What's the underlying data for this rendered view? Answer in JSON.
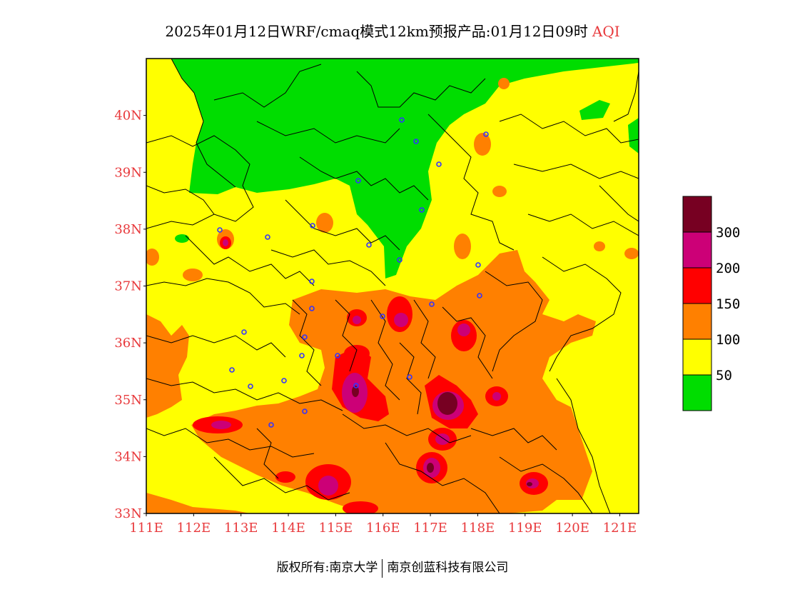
{
  "title": {
    "main": "2025年01月12日WRF/cmaq模式12km预报产品:01月12日09时",
    "product": "AQI"
  },
  "map": {
    "lat_labels": [
      "40N",
      "39N",
      "38N",
      "37N",
      "36N",
      "35N",
      "34N",
      "33N"
    ],
    "lon_labels": [
      "111E",
      "112E",
      "113E",
      "114E",
      "115E",
      "116E",
      "117E",
      "118E",
      "119E",
      "120E",
      "121E"
    ],
    "lat_range": [
      33,
      41
    ],
    "lon_range": [
      111,
      121.4
    ],
    "colors": {
      "good": "#00dd00",
      "moderate": "#ffff00",
      "sensitive": "#ff8000",
      "unhealthy": "#ff0000",
      "very_unhealthy": "#cc0077",
      "hazardous": "#770022",
      "station": "#3333ff",
      "border": "#000000"
    }
  },
  "legend": {
    "labels": [
      "300",
      "200",
      "150",
      "100",
      "50"
    ],
    "colors": [
      "#770022",
      "#cc0077",
      "#ff0000",
      "#ff8000",
      "#ffff00",
      "#00dd00"
    ]
  },
  "footer": {
    "left": "版权所有:南京大学",
    "right": "南京创蓝科技有限公司"
  }
}
